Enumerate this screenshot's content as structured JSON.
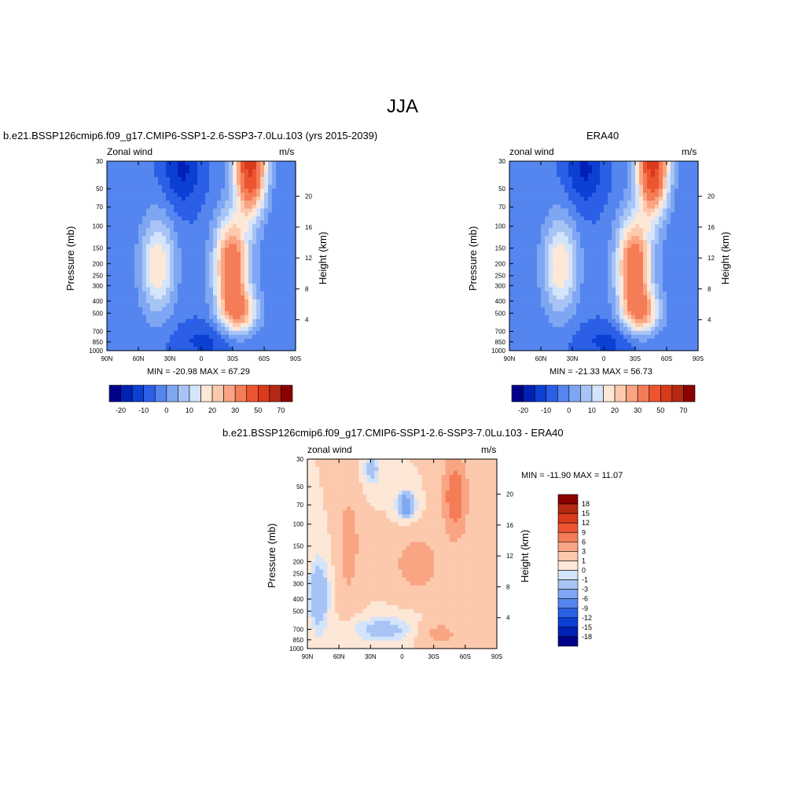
{
  "main_title": "JJA",
  "colors": {
    "ramp": [
      "#00008b",
      "#0022b4",
      "#0c3fd4",
      "#2a5fe6",
      "#5585ee",
      "#7ea6f2",
      "#a8c4f5",
      "#d4e4fa",
      "#fde7d7",
      "#fcc9ad",
      "#f9a482",
      "#f47c56",
      "#ec5530",
      "#d93a1a",
      "#b52812",
      "#8b0000"
    ],
    "axis": "#000000"
  },
  "chart_data": [
    {
      "type": "heatmap",
      "title": "b.e21.BSSP126cmip6.f09_g17.CMIP6-SSP1-2.6-SSP3-7.0Lu.103 (yrs 2015-2039)",
      "left_label": "Zonal wind",
      "right_label": "m/s",
      "xlabel": "",
      "ylabel": "Pressure (mb)",
      "ylabel_right": "Height (km)",
      "x_ticks": [
        "90N",
        "60N",
        "30N",
        "0",
        "30S",
        "60S",
        "90S"
      ],
      "y_ticks": [
        "30",
        "50",
        "70",
        "100",
        "150",
        "200",
        "250",
        "300",
        "400",
        "500",
        "700",
        "850",
        "1000"
      ],
      "y_ticks_right": [
        "20",
        "16",
        "12",
        "8",
        "4"
      ],
      "ylim": [
        1000,
        30
      ],
      "stats": "MIN = -20.98  MAX =  67.29",
      "min": -20.98,
      "max": 67.29,
      "colorbar_labels": [
        "-20",
        "-10",
        "0",
        "10",
        "20",
        "30",
        "50",
        "70"
      ]
    },
    {
      "type": "heatmap",
      "title": "ERA40",
      "left_label": "zonal wind",
      "right_label": "m/s",
      "xlabel": "",
      "ylabel": "Pressure (mb)",
      "ylabel_right": "Height (km)",
      "x_ticks": [
        "90N",
        "60N",
        "30N",
        "0",
        "30S",
        "60S",
        "90S"
      ],
      "y_ticks": [
        "30",
        "50",
        "70",
        "100",
        "150",
        "200",
        "250",
        "300",
        "400",
        "500",
        "700",
        "850",
        "1000"
      ],
      "y_ticks_right": [
        "20",
        "16",
        "12",
        "8",
        "4"
      ],
      "ylim": [
        1000,
        30
      ],
      "stats": "MIN = -21.33  MAX =  56.73",
      "min": -21.33,
      "max": 56.73,
      "colorbar_labels": [
        "-20",
        "-10",
        "0",
        "10",
        "20",
        "30",
        "50",
        "70"
      ]
    },
    {
      "type": "heatmap",
      "title": "b.e21.BSSP126cmip6.f09_g17.CMIP6-SSP1-2.6-SSP3-7.0Lu.103 - ERA40",
      "left_label": "zonal wind",
      "right_label": "m/s",
      "xlabel": "",
      "ylabel": "Pressure (mb)",
      "ylabel_right": "Height (km)",
      "x_ticks": [
        "90N",
        "60N",
        "30N",
        "0",
        "30S",
        "60S",
        "90S"
      ],
      "y_ticks": [
        "30",
        "50",
        "70",
        "100",
        "150",
        "200",
        "250",
        "300",
        "400",
        "500",
        "700",
        "850",
        "1000"
      ],
      "y_ticks_right": [
        "20",
        "16",
        "12",
        "8",
        "4"
      ],
      "ylim": [
        1000,
        30
      ],
      "stats": "MIN = -11.90  MAX =  11.07",
      "min": -11.9,
      "max": 11.07,
      "colorbar_labels": [
        "18",
        "15",
        "12",
        "9",
        "6",
        "3",
        "1",
        "0",
        "-1",
        "-3",
        "-6",
        "-9",
        "-12",
        "-15",
        "-18"
      ]
    }
  ]
}
